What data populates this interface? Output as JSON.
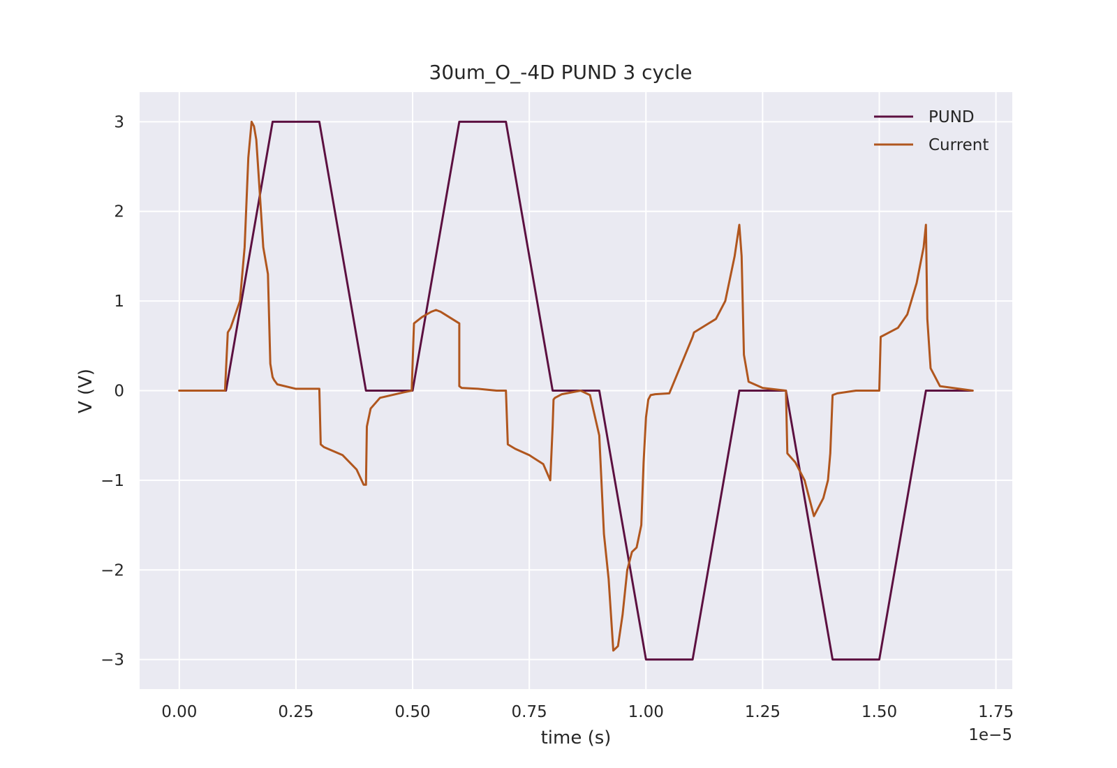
{
  "chart_data": {
    "type": "line",
    "title": "30um_O_-4D PUND 3 cycle",
    "xlabel": "time (s)",
    "ylabel": "V (V)",
    "x_offset_label": "1e−5",
    "xlim": [
      -0.085,
      1.785
    ],
    "ylim": [
      -3.33,
      3.33
    ],
    "xticks": [
      0.0,
      0.25,
      0.5,
      0.75,
      1.0,
      1.25,
      1.5,
      1.75
    ],
    "xtick_labels": [
      "0.00",
      "0.25",
      "0.50",
      "0.75",
      "1.00",
      "1.25",
      "1.50",
      "1.75"
    ],
    "yticks": [
      -3,
      -2,
      -1,
      0,
      1,
      2,
      3
    ],
    "ytick_labels": [
      "−3",
      "−2",
      "−1",
      "0",
      "1",
      "2",
      "3"
    ],
    "grid": true,
    "legend_position": "top-right",
    "background": "#eaeaf2",
    "series": [
      {
        "name": "PUND",
        "color": "#5c1040",
        "x": [
          0.0,
          0.1,
          0.2,
          0.3,
          0.4,
          0.5,
          0.6,
          0.7,
          0.8,
          0.9,
          1.0,
          1.1,
          1.2,
          1.3,
          1.4,
          1.5,
          1.6,
          1.7
        ],
        "y": [
          0.0,
          0.0,
          3.0,
          3.0,
          0.0,
          0.0,
          3.0,
          3.0,
          0.0,
          0.0,
          -3.0,
          -3.0,
          0.0,
          0.0,
          -3.0,
          -3.0,
          0.0,
          0.0
        ]
      },
      {
        "name": "Current",
        "color": "#b0561e",
        "x": [
          0.0,
          0.05,
          0.098,
          0.104,
          0.11,
          0.12,
          0.13,
          0.14,
          0.148,
          0.155,
          0.16,
          0.165,
          0.17,
          0.18,
          0.19,
          0.195,
          0.2,
          0.203,
          0.21,
          0.25,
          0.3,
          0.303,
          0.31,
          0.35,
          0.38,
          0.395,
          0.4,
          0.402,
          0.41,
          0.43,
          0.48,
          0.498,
          0.503,
          0.52,
          0.54,
          0.55,
          0.56,
          0.6,
          0.6,
          0.605,
          0.64,
          0.68,
          0.7,
          0.704,
          0.72,
          0.75,
          0.78,
          0.795,
          0.8,
          0.802,
          0.805,
          0.82,
          0.86,
          0.88,
          0.9,
          0.91,
          0.92,
          0.93,
          0.94,
          0.95,
          0.96,
          0.97,
          0.98,
          0.99,
          0.995,
          1.0,
          1.005,
          1.01,
          1.02,
          1.05,
          1.1,
          1.103,
          1.15,
          1.17,
          1.19,
          1.2,
          1.205,
          1.21,
          1.22,
          1.25,
          1.3,
          1.303,
          1.32,
          1.34,
          1.36,
          1.38,
          1.39,
          1.395,
          1.4,
          1.41,
          1.45,
          1.5,
          1.503,
          1.54,
          1.56,
          1.58,
          1.595,
          1.6,
          1.603,
          1.61,
          1.63,
          1.7
        ],
        "y": [
          0.0,
          0.0,
          0.0,
          0.65,
          0.7,
          0.85,
          1.0,
          1.6,
          2.6,
          3.0,
          2.95,
          2.8,
          2.4,
          1.6,
          1.3,
          0.3,
          0.15,
          0.12,
          0.07,
          0.02,
          0.02,
          -0.6,
          -0.63,
          -0.72,
          -0.88,
          -1.05,
          -1.05,
          -0.4,
          -0.2,
          -0.08,
          -0.02,
          0.0,
          0.75,
          0.82,
          0.88,
          0.9,
          0.88,
          0.75,
          0.05,
          0.03,
          0.02,
          0.0,
          0.0,
          -0.6,
          -0.65,
          -0.72,
          -0.82,
          -1.0,
          -0.4,
          -0.1,
          -0.08,
          -0.04,
          0.0,
          -0.05,
          -0.5,
          -1.6,
          -2.1,
          -2.9,
          -2.85,
          -2.5,
          -2.0,
          -1.8,
          -1.75,
          -1.5,
          -0.8,
          -0.3,
          -0.1,
          -0.05,
          -0.04,
          -0.03,
          0.6,
          0.65,
          0.8,
          1.0,
          1.5,
          1.85,
          1.5,
          0.4,
          0.1,
          0.03,
          0.0,
          -0.7,
          -0.8,
          -1.0,
          -1.4,
          -1.2,
          -1.0,
          -0.7,
          -0.05,
          -0.03,
          0.0,
          0.0,
          0.6,
          0.7,
          0.85,
          1.2,
          1.6,
          1.85,
          0.8,
          0.25,
          0.05,
          0.0
        ]
      }
    ]
  }
}
